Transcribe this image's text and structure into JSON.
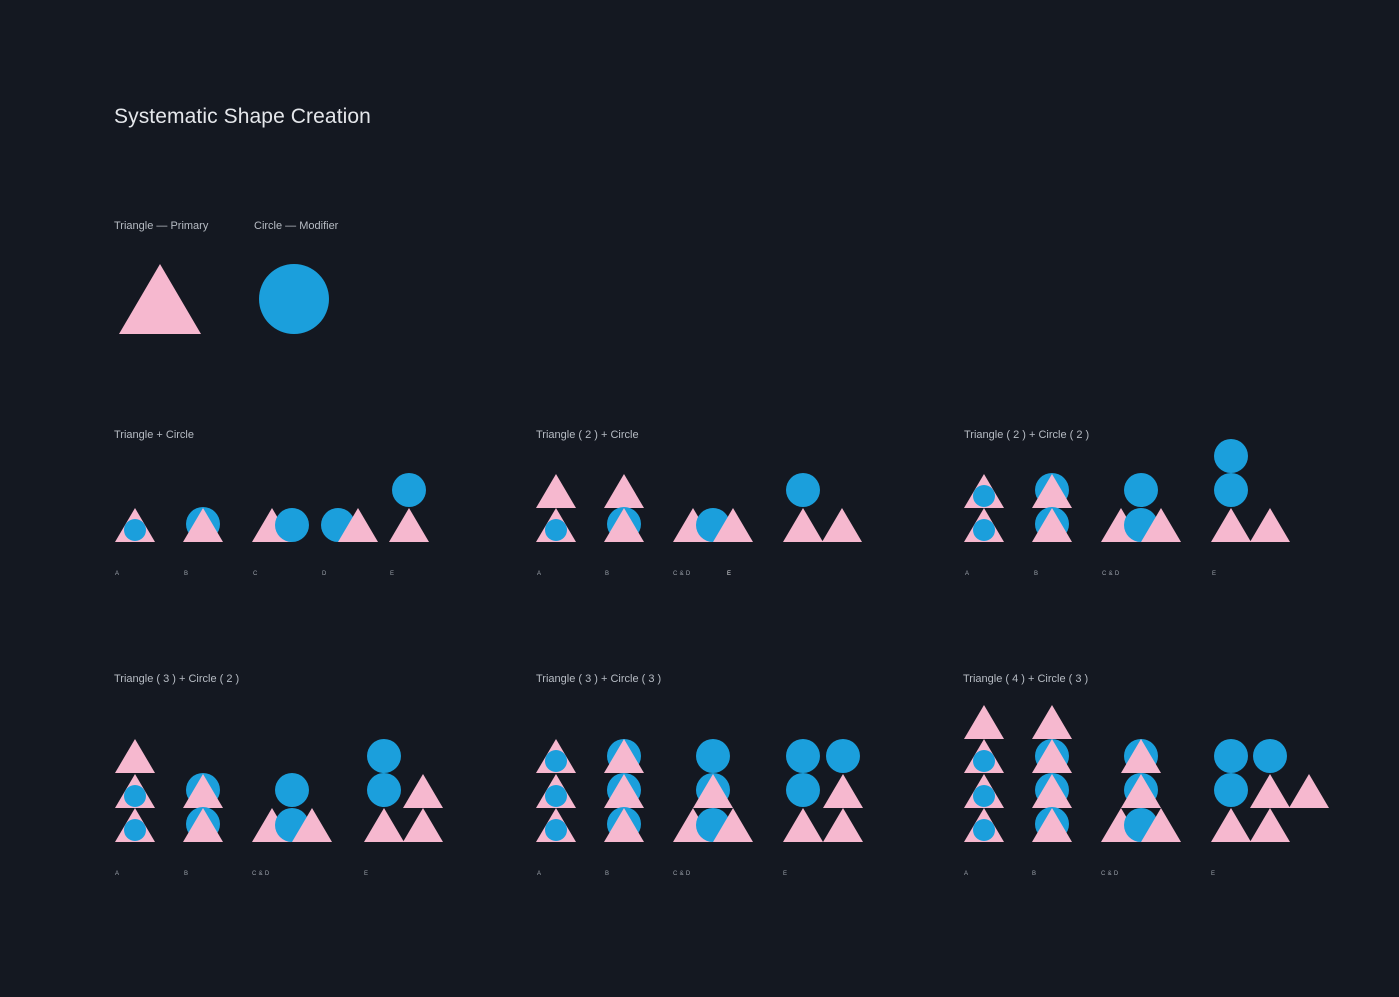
{
  "title": "Systematic Shape Creation",
  "colors": {
    "background": "#141821",
    "triangle": "#f6b8cf",
    "circle": "#1b9fdc"
  },
  "primitives": {
    "triangle_label": "Triangle — Primary",
    "circle_label": "Circle — Modifier"
  },
  "groups": [
    {
      "title": "Triangle + Circle",
      "labels": [
        "A",
        "B",
        "C",
        "D",
        "E"
      ]
    },
    {
      "title": "Triangle ( 2 ) + Circle",
      "labels": [
        "A",
        "B",
        "C & D",
        "E"
      ]
    },
    {
      "title": "Triangle ( 2 ) + Circle ( 2 )",
      "labels": [
        "A",
        "B",
        "C & D",
        "E"
      ]
    },
    {
      "title": "Triangle ( 3 ) + Circle ( 2 )",
      "labels": [
        "A",
        "B",
        "C & D",
        "E"
      ]
    },
    {
      "title": "Triangle ( 3 ) + Circle  ( 3 )",
      "labels": [
        "A",
        "B",
        "C & D",
        "E"
      ]
    },
    {
      "title": "Triangle ( 4 ) + Circle  ( 3 )",
      "labels": [
        "A",
        "B",
        "C & D",
        "E"
      ]
    }
  ]
}
